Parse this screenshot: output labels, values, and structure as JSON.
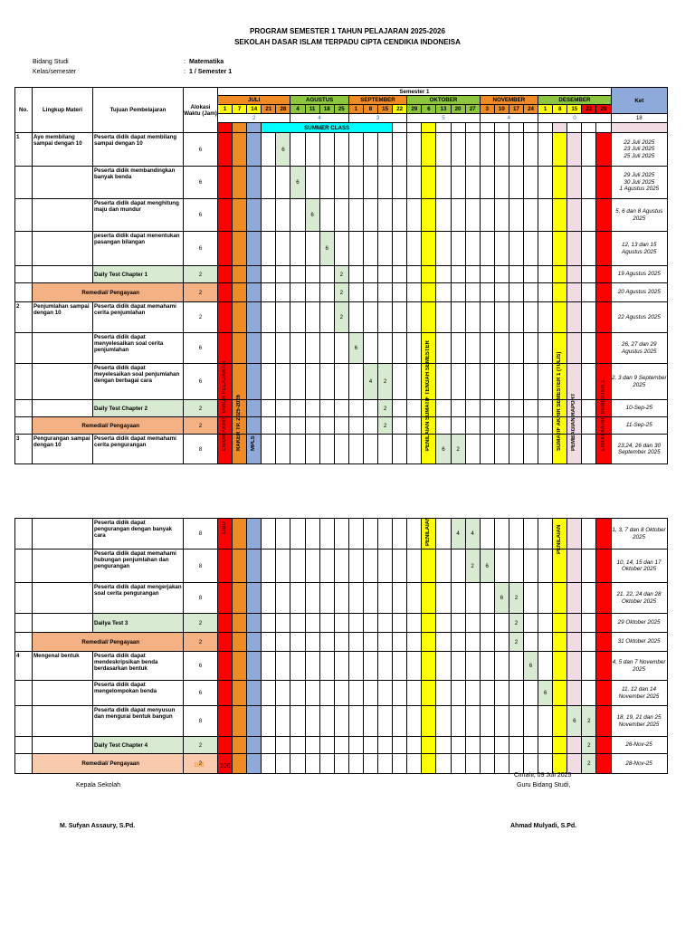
{
  "header": {
    "title1": "PROGRAM SEMESTER 1 TAHUN PELAJARAN 2025-2026",
    "title2": "SEKOLAH DASAR ISLAM TERPADU CIPTA CENDIKIA INDONEISA"
  },
  "meta": {
    "bidang_label": "Bidang Studi",
    "bidang_sep": ":",
    "bidang_value": "Matematika",
    "kelas_label": "Kelas/semester",
    "kelas_sep": ":",
    "kelas_value": "1 / Semester 1"
  },
  "table_head": {
    "no": "No.",
    "lingkup": "Lingkup Materi",
    "tujuan": "Tujuan Pembelajaran",
    "alokasi": "Alokasi Waktu (Jam)",
    "semester": "Semester 1",
    "ket": "Ket",
    "summer": "SUMMER CLASS",
    "total": "18",
    "months": [
      {
        "name": "JULI",
        "weeks": [
          "1",
          "7",
          "14",
          "21",
          "28"
        ],
        "count": "2"
      },
      {
        "name": "AGUSTUS",
        "weeks": [
          "4",
          "11",
          "18",
          "25"
        ],
        "count": "4"
      },
      {
        "name": "SEPTEMBER",
        "weeks": [
          "1",
          "8",
          "15",
          "22"
        ],
        "count": "3"
      },
      {
        "name": "OKTOBER",
        "weeks": [
          "29",
          "6",
          "13",
          "20",
          "27"
        ],
        "count": "5"
      },
      {
        "name": "NOVEMBER",
        "weeks": [
          "3",
          "10",
          "17",
          "24"
        ],
        "count": "4"
      },
      {
        "name": "DESEMBER",
        "weeks": [
          "1",
          "8",
          "15",
          "22",
          "29"
        ],
        "count": "0"
      }
    ]
  },
  "bands": {
    "red1": "LIBUR AKHIR TAHUN PELAJARAN",
    "orange": "RAKER TP. 2025-2026",
    "blue": "MPLS",
    "yellow1": "PENILAIAN SUMATIF TENGAH SEMESTER 1",
    "yellow2": "SUMATIF AKHIR SEMESTER 1 (TULIS)",
    "pink": "PEMBAGIAN RAPORT",
    "red2": "LIBUR AKHIR SEMESTER 1",
    "p2_red1": "LIBU",
    "p2_yellow1": "PENILAIAN",
    "p2_yellow2": "PENILAIAN"
  },
  "rows_p1": [
    {
      "no": "1",
      "lingkup": "Ayo membilang sampai dengan 10",
      "tujuan": "Peserta didik dapat membilang sampai dengan 10",
      "alokasi": "6",
      "ket": "22 Juli 2025\n23 Juli 2025\n25 Juli 2025"
    },
    {
      "tujuan": "Peserta didik membandingkan banyak benda",
      "alokasi": "6",
      "ket": "29 Juli 2025\n30 Juli 2025\n1 Agustus 2025"
    },
    {
      "tujuan": "Peserta didik dapat menghitung maju dan mundur",
      "alokasi": "6",
      "ket": "5, 6 dan 8 Agustus 2025"
    },
    {
      "tujuan": "peserta didik dapat menentukan pasangan bilangan",
      "alokasi": "6",
      "ket": "12, 13 dan 15 Agustus 2025"
    },
    {
      "tujuan": "Daily Test Chapter 1",
      "alokasi": "2",
      "ket": "19 Agustus 2025"
    },
    {
      "tujuan": "Remedial/ Pengayaan",
      "alokasi": "2",
      "ket": "20 Agustus 2025"
    },
    {
      "no": "2",
      "lingkup": "Penjumlahan sampai dengan 10",
      "tujuan": "Peserta didik dapat memahami cerita penjumlahan",
      "alokasi": "2",
      "ket": "22 Agustus 2025"
    },
    {
      "tujuan": "Peserta didik dapat menyelesaikan soal cerita penjumlahan",
      "alokasi": "6",
      "ket": "26, 27 dan 29 Agustus 2025"
    },
    {
      "tujuan": "Peserta didik dapat meyelesaikan soal penjumlahan dengan berbagai cara",
      "alokasi": "6",
      "ket": "2, 3 dan 9 September 2025"
    },
    {
      "tujuan": "Daily Test Chapter 2",
      "alokasi": "2",
      "ket": "10-Sep-25"
    },
    {
      "tujuan": "Remedial/ Pengayaan",
      "alokasi": "2",
      "ket": "11-Sep-25"
    },
    {
      "no": "3",
      "lingkup": "Pengurangan sampai dengan 10",
      "tujuan": "Peserta didik dapat memahami cerita pengurangan",
      "alokasi": "8",
      "ket": "23,24, 26 dan 30 September 2025"
    }
  ],
  "rows_p2": [
    {
      "tujuan": "Peserta didik dapat pengurangan dengan banyak cara",
      "alokasi": "8",
      "ket": "1, 3, 7 dan 8 Oktober 2025"
    },
    {
      "tujuan": "Peserta didik dapat memahami hubungan penjumlahan dan pengurangan",
      "alokasi": "8",
      "ket": "10, 14, 15 dan 17 Oktober 2025"
    },
    {
      "tujuan": "Peserta didik dapat mengerjakan soal cerita pengurangan",
      "alokasi": "8",
      "ket": "21, 22, 24 dan 28 Oktober 2025"
    },
    {
      "tujuan": "Dailya Test 3",
      "alokasi": "2",
      "ket": "29 Oktober 2025"
    },
    {
      "tujuan": "Remedial/ Pengayaan",
      "alokasi": "2",
      "ket": "31 Oktober 2025"
    },
    {
      "no": "4",
      "lingkup": "Mengenal bentuk",
      "tujuan": "Peserta didik dapat mendeskripsikan benda berdasarkan bentuk",
      "alokasi": "6",
      "ket": "4, 5 dan 7 November 2025"
    },
    {
      "tujuan": "Peserta didik dapat mengelompokan benda",
      "alokasi": "6",
      "ket": "11, 12 dan 14 November 2025"
    },
    {
      "tujuan": "Peserta didik dapat menyusun dan mengurai bentuk bangun",
      "alokasi": "8",
      "ket": "18, 19, 21 dan 25 November 2025"
    },
    {
      "tujuan": "Daily Test Chapter 4",
      "alokasi": "2",
      "ket": "26-Nov-25"
    },
    {
      "tujuan": "Remedial/ Pengayaan",
      "alokasi": "2",
      "ket": "28-Nov-25"
    }
  ],
  "footer": {
    "sum_orange": "106",
    "sum_black": "106",
    "place_date": "Cimahi, 09  Juli 2025",
    "guru_label": "Guru Bidang Studi,",
    "kepala_label": "Kepala Sekolah",
    "kepala_name": "M. Sufyan Assaury, S.Pd.",
    "guru_name": "Ahmad Mulyadi, S.Pd."
  },
  "colors": {
    "red": "#ff0000",
    "orange": "#f08a24",
    "blue": "#8eaadb",
    "yellow": "#ffff00",
    "pink": "#f2dce4",
    "green": "#8cc63e",
    "lightgreen": "#d9ead3"
  }
}
